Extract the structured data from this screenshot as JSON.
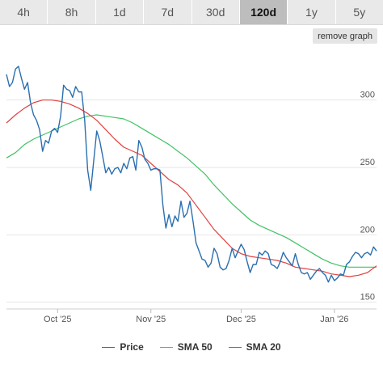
{
  "tabs": [
    "4h",
    "8h",
    "1d",
    "7d",
    "30d",
    "120d",
    "1y",
    "5y"
  ],
  "active_tab": "120d",
  "remove_graph_label": "remove graph",
  "colors": {
    "price": "#2a6fb0",
    "sma50": "#41c266",
    "sma20": "#e0413f",
    "grid": "#e6e6e6"
  },
  "chart_data": {
    "type": "line",
    "title": "",
    "xlabel": "",
    "ylabel": "",
    "x_ticks": [
      {
        "label": "Oct '25",
        "t": 17
      },
      {
        "label": "Nov '25",
        "t": 48
      },
      {
        "label": "Dec '25",
        "t": 78
      },
      {
        "label": "Jan '26",
        "t": 109
      }
    ],
    "xlim": [
      0,
      123
    ],
    "y_ticks": [
      150,
      200,
      250,
      300
    ],
    "ylim": [
      145,
      337
    ],
    "grid": true,
    "legend": "bottom-center",
    "series": [
      {
        "name": "Price",
        "color_key": "price",
        "points": [
          [
            0,
            319
          ],
          [
            1,
            310
          ],
          [
            2,
            313
          ],
          [
            3,
            323
          ],
          [
            4,
            325
          ],
          [
            5,
            316
          ],
          [
            6,
            308
          ],
          [
            7,
            313
          ],
          [
            8,
            298
          ],
          [
            9,
            289
          ],
          [
            10,
            285
          ],
          [
            11,
            278
          ],
          [
            12,
            262
          ],
          [
            13,
            270
          ],
          [
            14,
            268
          ],
          [
            15,
            277
          ],
          [
            16,
            279
          ],
          [
            17,
            276
          ],
          [
            18,
            288
          ],
          [
            19,
            311
          ],
          [
            20,
            308
          ],
          [
            21,
            307
          ],
          [
            22,
            302
          ],
          [
            23,
            310
          ],
          [
            24,
            306
          ],
          [
            25,
            306
          ],
          [
            26,
            285
          ],
          [
            27,
            248
          ],
          [
            28,
            233
          ],
          [
            29,
            255
          ],
          [
            30,
            277
          ],
          [
            31,
            270
          ],
          [
            32,
            258
          ],
          [
            33,
            246
          ],
          [
            34,
            250
          ],
          [
            35,
            245
          ],
          [
            36,
            249
          ],
          [
            37,
            250
          ],
          [
            38,
            246
          ],
          [
            39,
            253
          ],
          [
            40,
            249
          ],
          [
            41,
            257
          ],
          [
            42,
            258
          ],
          [
            43,
            248
          ],
          [
            44,
            270
          ],
          [
            45,
            265
          ],
          [
            46,
            256
          ],
          [
            47,
            253
          ],
          [
            48,
            248
          ],
          [
            49,
            249
          ],
          [
            50,
            249
          ],
          [
            51,
            248
          ],
          [
            52,
            222
          ],
          [
            53,
            205
          ],
          [
            54,
            215
          ],
          [
            55,
            206
          ],
          [
            56,
            214
          ],
          [
            57,
            210
          ],
          [
            58,
            225
          ],
          [
            59,
            213
          ],
          [
            60,
            216
          ],
          [
            61,
            225
          ],
          [
            62,
            210
          ],
          [
            63,
            194
          ],
          [
            64,
            188
          ],
          [
            65,
            182
          ],
          [
            66,
            181
          ],
          [
            67,
            176
          ],
          [
            68,
            179
          ],
          [
            69,
            190
          ],
          [
            70,
            186
          ],
          [
            71,
            176
          ],
          [
            72,
            174
          ],
          [
            73,
            175
          ],
          [
            74,
            181
          ],
          [
            75,
            190
          ],
          [
            76,
            183
          ],
          [
            77,
            188
          ],
          [
            78,
            193
          ],
          [
            79,
            189
          ],
          [
            80,
            180
          ],
          [
            81,
            172
          ],
          [
            82,
            178
          ],
          [
            83,
            178
          ],
          [
            84,
            187
          ],
          [
            85,
            185
          ],
          [
            86,
            188
          ],
          [
            87,
            186
          ],
          [
            88,
            178
          ],
          [
            89,
            177
          ],
          [
            90,
            175
          ],
          [
            91,
            180
          ],
          [
            92,
            187
          ],
          [
            93,
            183
          ],
          [
            94,
            180
          ],
          [
            95,
            177
          ],
          [
            96,
            186
          ],
          [
            97,
            178
          ],
          [
            98,
            172
          ],
          [
            99,
            171
          ],
          [
            100,
            172
          ],
          [
            101,
            167
          ],
          [
            102,
            170
          ],
          [
            103,
            173
          ],
          [
            104,
            175
          ],
          [
            105,
            172
          ],
          [
            106,
            170
          ],
          [
            107,
            165
          ],
          [
            108,
            170
          ],
          [
            109,
            166
          ],
          [
            110,
            168
          ],
          [
            111,
            171
          ],
          [
            112,
            170
          ],
          [
            113,
            178
          ],
          [
            114,
            180
          ],
          [
            115,
            184
          ],
          [
            116,
            187
          ],
          [
            117,
            186
          ],
          [
            118,
            183
          ],
          [
            119,
            186
          ],
          [
            120,
            187
          ],
          [
            121,
            185
          ],
          [
            122,
            191
          ],
          [
            123,
            188
          ]
        ]
      },
      {
        "name": "SMA 50",
        "color_key": "sma50",
        "points": [
          [
            0,
            257
          ],
          [
            3,
            261
          ],
          [
            6,
            267
          ],
          [
            9,
            271
          ],
          [
            12,
            274
          ],
          [
            15,
            277
          ],
          [
            18,
            280
          ],
          [
            21,
            283
          ],
          [
            24,
            286
          ],
          [
            27,
            288
          ],
          [
            30,
            289
          ],
          [
            33,
            288
          ],
          [
            36,
            287
          ],
          [
            39,
            286
          ],
          [
            42,
            283
          ],
          [
            45,
            279
          ],
          [
            48,
            275
          ],
          [
            51,
            271
          ],
          [
            54,
            267
          ],
          [
            57,
            262
          ],
          [
            60,
            257
          ],
          [
            63,
            251
          ],
          [
            66,
            245
          ],
          [
            69,
            237
          ],
          [
            72,
            230
          ],
          [
            75,
            223
          ],
          [
            78,
            217
          ],
          [
            81,
            211
          ],
          [
            84,
            207
          ],
          [
            87,
            204
          ],
          [
            90,
            201
          ],
          [
            93,
            198
          ],
          [
            96,
            194
          ],
          [
            99,
            190
          ],
          [
            102,
            186
          ],
          [
            105,
            182
          ],
          [
            108,
            179
          ],
          [
            111,
            177
          ],
          [
            114,
            176
          ],
          [
            117,
            176
          ],
          [
            120,
            176
          ],
          [
            123,
            176
          ]
        ]
      },
      {
        "name": "SMA 20",
        "color_key": "sma20",
        "points": [
          [
            0,
            283
          ],
          [
            3,
            289
          ],
          [
            6,
            294
          ],
          [
            9,
            298
          ],
          [
            12,
            300
          ],
          [
            15,
            300
          ],
          [
            18,
            299
          ],
          [
            21,
            297
          ],
          [
            24,
            294
          ],
          [
            27,
            290
          ],
          [
            30,
            285
          ],
          [
            33,
            278
          ],
          [
            36,
            271
          ],
          [
            39,
            265
          ],
          [
            42,
            262
          ],
          [
            45,
            259
          ],
          [
            48,
            253
          ],
          [
            51,
            247
          ],
          [
            54,
            241
          ],
          [
            57,
            237
          ],
          [
            60,
            231
          ],
          [
            63,
            222
          ],
          [
            66,
            213
          ],
          [
            69,
            204
          ],
          [
            72,
            197
          ],
          [
            75,
            190
          ],
          [
            78,
            186
          ],
          [
            81,
            184
          ],
          [
            84,
            183
          ],
          [
            87,
            182
          ],
          [
            90,
            181
          ],
          [
            93,
            179
          ],
          [
            96,
            176
          ],
          [
            99,
            175
          ],
          [
            102,
            174
          ],
          [
            105,
            173
          ],
          [
            108,
            171
          ],
          [
            111,
            170
          ],
          [
            114,
            169
          ],
          [
            117,
            170
          ],
          [
            120,
            172
          ],
          [
            123,
            177
          ]
        ]
      }
    ]
  }
}
